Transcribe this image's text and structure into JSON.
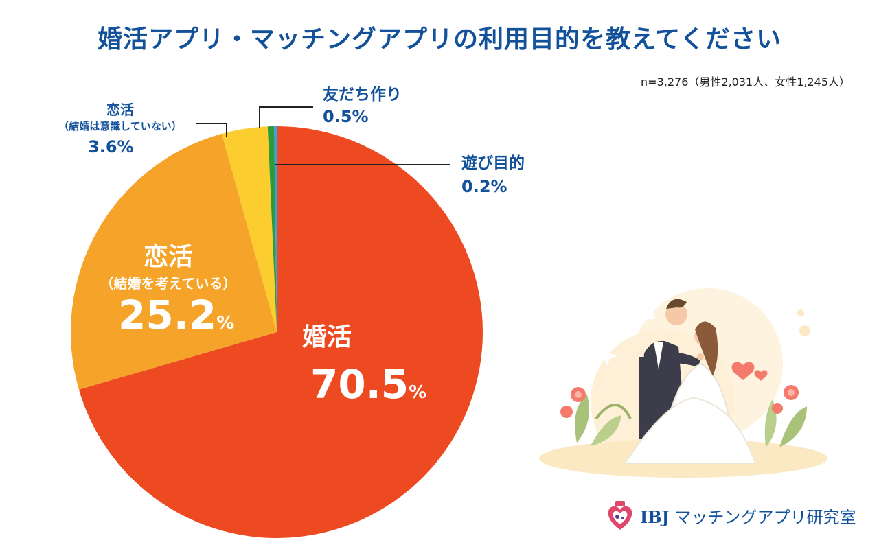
{
  "title": "婚活アプリ・マッチングアプリの利用目的を教えてください",
  "sample_note": "n=3,276（男性2,031人、女性1,245人）",
  "percent_sign": "%",
  "colors": {
    "title": "#13529b",
    "konkatsu": "#ee4a22",
    "renai_marriage": "#f6a32a",
    "renai_nomarriage": "#fccd2e",
    "friends": "#2e9b3a",
    "play": "#3aa0ee"
  },
  "labels": {
    "konkatsu": {
      "name": "婚活",
      "value": "70.5"
    },
    "renai_marriage": {
      "name": "恋活",
      "sub": "（結婚を考えている）",
      "value": "25.2"
    },
    "renai_nomarriage": {
      "name": "恋活",
      "sub": "（結婚は意識していない）",
      "value": "3.6%"
    },
    "friends": {
      "name": "友だち作り",
      "value": "0.5%"
    },
    "play": {
      "name": "遊び目的",
      "value": "0.2%"
    }
  },
  "logo": {
    "brand": "IBJ",
    "text": "マッチングアプリ研究室"
  },
  "chart_data": {
    "type": "pie",
    "title": "婚活アプリ・マッチングアプリの利用目的を教えてください",
    "start": "12 o'clock",
    "direction": "clockwise",
    "slices": [
      {
        "label": "婚活",
        "value": 70.5,
        "color": "#ee4a22"
      },
      {
        "label": "恋活（結婚を考えている）",
        "value": 25.2,
        "color": "#f6a32a"
      },
      {
        "label": "恋活（結婚は意識していない）",
        "value": 3.6,
        "color": "#fccd2e"
      },
      {
        "label": "友だち作り",
        "value": 0.5,
        "color": "#2e9b3a"
      },
      {
        "label": "遊び目的",
        "value": 0.2,
        "color": "#3aa0ee"
      }
    ],
    "annotations": [
      "n=3,276（男性2,031人、女性1,245人）"
    ]
  }
}
